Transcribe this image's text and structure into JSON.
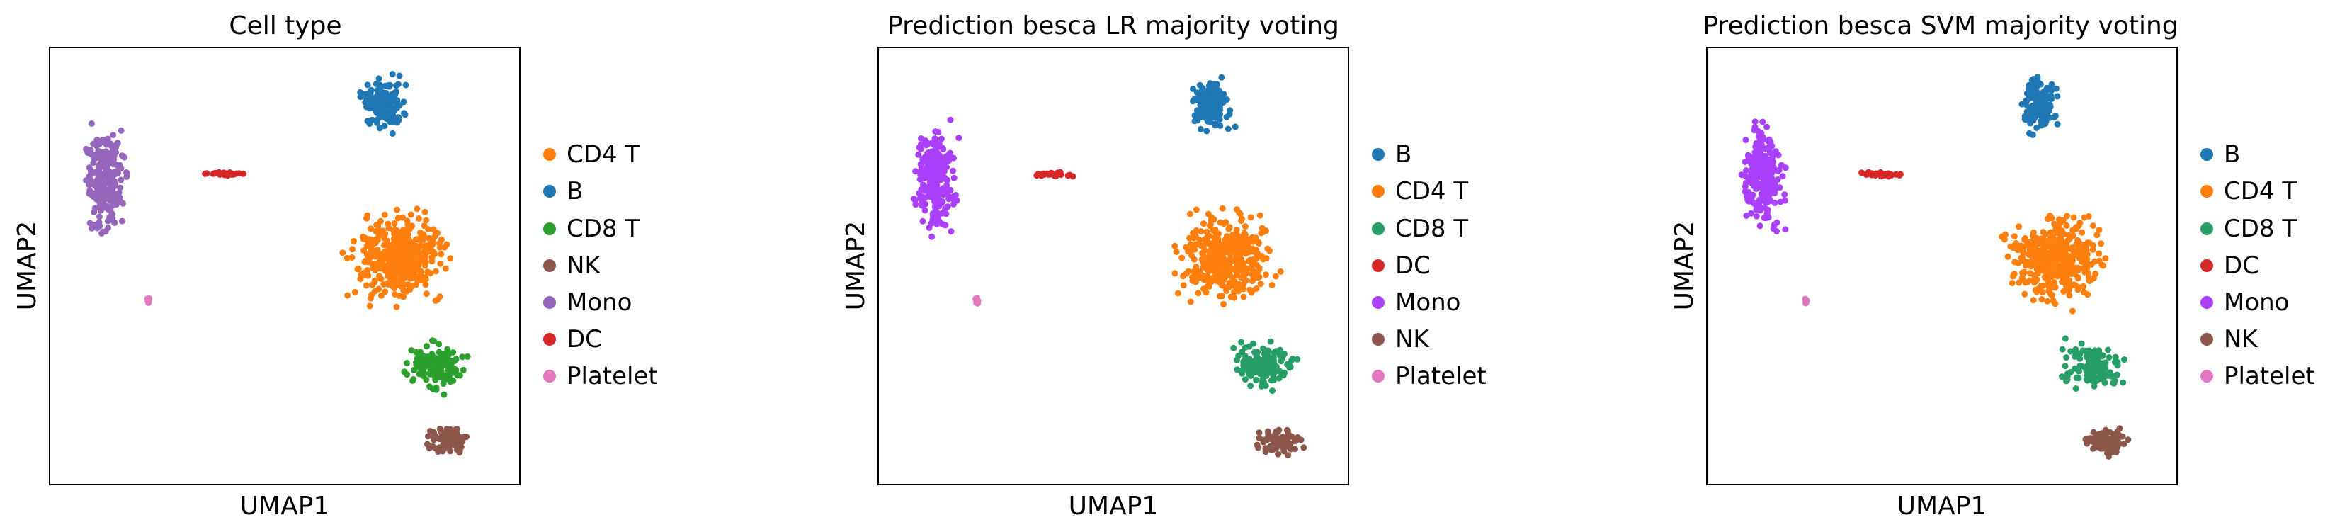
{
  "figure": {
    "panels": [
      {
        "title": "Cell type",
        "xlabel": "UMAP1",
        "ylabel": "UMAP2",
        "legend": [
          {
            "label": "CD4 T",
            "color": "#ff7f0e"
          },
          {
            "label": "B",
            "color": "#1f77b4"
          },
          {
            "label": "CD8 T",
            "color": "#2ca02c"
          },
          {
            "label": "NK",
            "color": "#8c564b"
          },
          {
            "label": "Mono",
            "color": "#9467bd"
          },
          {
            "label": "DC",
            "color": "#d62728"
          },
          {
            "label": "Platelet",
            "color": "#e377c2"
          }
        ]
      },
      {
        "title": "Prediction besca LR majority voting",
        "xlabel": "UMAP1",
        "ylabel": "UMAP2",
        "legend": [
          {
            "label": "B",
            "color": "#1f77b4"
          },
          {
            "label": "CD4 T",
            "color": "#ff7f0e"
          },
          {
            "label": "CD8 T",
            "color": "#279e68"
          },
          {
            "label": "DC",
            "color": "#d62728"
          },
          {
            "label": "Mono",
            "color": "#aa40fc"
          },
          {
            "label": "NK",
            "color": "#8c564b"
          },
          {
            "label": "Platelet",
            "color": "#e377c2"
          }
        ]
      },
      {
        "title": "Prediction besca SVM majority voting",
        "xlabel": "UMAP1",
        "ylabel": "UMAP2",
        "legend": [
          {
            "label": "B",
            "color": "#1f77b4"
          },
          {
            "label": "CD4 T",
            "color": "#ff7f0e"
          },
          {
            "label": "CD8 T",
            "color": "#279e68"
          },
          {
            "label": "DC",
            "color": "#d62728"
          },
          {
            "label": "Mono",
            "color": "#aa40fc"
          },
          {
            "label": "NK",
            "color": "#8c564b"
          },
          {
            "label": "Platelet",
            "color": "#e377c2"
          }
        ]
      }
    ]
  },
  "chart_data": [
    {
      "type": "scatter",
      "title": "Cell type",
      "xlabel": "UMAP1",
      "ylabel": "UMAP2",
      "grid": false,
      "ticks": false,
      "legend_position": "right",
      "clusters": [
        {
          "name": "B",
          "color": "#1f77b4",
          "center": [
            0.71,
            0.87
          ],
          "spread": [
            0.055,
            0.075
          ],
          "n": 150
        },
        {
          "name": "CD4 T",
          "color": "#ff7f0e",
          "center": [
            0.74,
            0.52
          ],
          "spread": [
            0.13,
            0.13
          ],
          "n": 400
        },
        {
          "name": "CD8 T",
          "color": "#2ca02c",
          "center": [
            0.82,
            0.27
          ],
          "spread": [
            0.08,
            0.07
          ],
          "n": 140
        },
        {
          "name": "NK",
          "color": "#8c564b",
          "center": [
            0.85,
            0.1
          ],
          "spread": [
            0.06,
            0.04
          ],
          "n": 90
        },
        {
          "name": "Mono",
          "color": "#9467bd",
          "center": [
            0.12,
            0.7
          ],
          "spread": [
            0.055,
            0.15
          ],
          "n": 230
        },
        {
          "name": "DC",
          "color": "#d62728",
          "center": [
            0.37,
            0.71
          ],
          "spread": [
            0.07,
            0.008
          ],
          "n": 25
        },
        {
          "name": "Platelet",
          "color": "#e377c2",
          "center": [
            0.21,
            0.42
          ],
          "spread": [
            0.005,
            0.01
          ],
          "n": 8
        }
      ]
    },
    {
      "type": "scatter",
      "title": "Prediction besca LR majority voting",
      "xlabel": "UMAP1",
      "ylabel": "UMAP2",
      "grid": false,
      "ticks": false,
      "legend_position": "right",
      "clusters": [
        {
          "name": "B",
          "color": "#1f77b4",
          "center": [
            0.71,
            0.87
          ],
          "spread": [
            0.055,
            0.075
          ],
          "n": 150
        },
        {
          "name": "CD4 T",
          "color": "#ff7f0e",
          "center": [
            0.74,
            0.52
          ],
          "spread": [
            0.13,
            0.13
          ],
          "n": 400
        },
        {
          "name": "CD8 T",
          "color": "#279e68",
          "center": [
            0.82,
            0.27
          ],
          "spread": [
            0.08,
            0.07
          ],
          "n": 140
        },
        {
          "name": "NK",
          "color": "#8c564b",
          "center": [
            0.85,
            0.1
          ],
          "spread": [
            0.06,
            0.04
          ],
          "n": 90
        },
        {
          "name": "Mono",
          "color": "#aa40fc",
          "center": [
            0.12,
            0.7
          ],
          "spread": [
            0.055,
            0.15
          ],
          "n": 230
        },
        {
          "name": "DC",
          "color": "#d62728",
          "center": [
            0.37,
            0.71
          ],
          "spread": [
            0.07,
            0.008
          ],
          "n": 25
        },
        {
          "name": "Platelet",
          "color": "#e377c2",
          "center": [
            0.21,
            0.42
          ],
          "spread": [
            0.005,
            0.01
          ],
          "n": 8
        }
      ]
    },
    {
      "type": "scatter",
      "title": "Prediction besca SVM majority voting",
      "xlabel": "UMAP1",
      "ylabel": "UMAP2",
      "grid": false,
      "ticks": false,
      "legend_position": "right",
      "clusters": [
        {
          "name": "B",
          "color": "#1f77b4",
          "center": [
            0.71,
            0.87
          ],
          "spread": [
            0.055,
            0.075
          ],
          "n": 150
        },
        {
          "name": "CD4 T",
          "color": "#ff7f0e",
          "center": [
            0.74,
            0.52
          ],
          "spread": [
            0.13,
            0.13
          ],
          "n": 400
        },
        {
          "name": "CD8 T",
          "color": "#279e68",
          "center": [
            0.82,
            0.27
          ],
          "spread": [
            0.08,
            0.07
          ],
          "n": 140
        },
        {
          "name": "NK",
          "color": "#8c564b",
          "center": [
            0.85,
            0.1
          ],
          "spread": [
            0.06,
            0.04
          ],
          "n": 90
        },
        {
          "name": "Mono",
          "color": "#aa40fc",
          "center": [
            0.12,
            0.7
          ],
          "spread": [
            0.055,
            0.15
          ],
          "n": 230
        },
        {
          "name": "DC",
          "color": "#d62728",
          "center": [
            0.37,
            0.71
          ],
          "spread": [
            0.07,
            0.008
          ],
          "n": 25
        },
        {
          "name": "Platelet",
          "color": "#e377c2",
          "center": [
            0.21,
            0.42
          ],
          "spread": [
            0.005,
            0.01
          ],
          "n": 8
        }
      ]
    }
  ]
}
